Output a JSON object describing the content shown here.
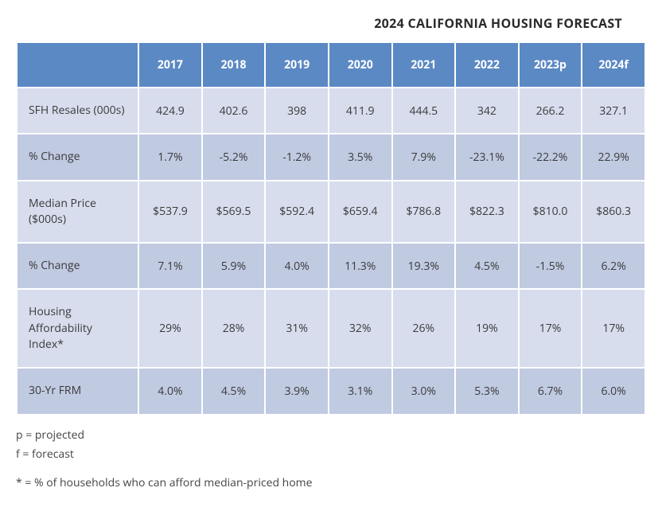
{
  "title": "2024 CALIFORNIA HOUSING FORECAST",
  "table": {
    "type": "table",
    "header_bg": "#5b89c4",
    "header_color": "#ffffff",
    "row_bg_odd": "#d7dded",
    "row_bg_even": "#c0cae1",
    "text_color": "#3a3a3a",
    "font_size": 14,
    "columns": [
      "",
      "2017",
      "2018",
      "2019",
      "2020",
      "2021",
      "2022",
      "2023p",
      "2024f"
    ],
    "rows": [
      {
        "label": "SFH Resales (000s)",
        "cells": [
          "424.9",
          "402.6",
          "398",
          "411.9",
          "444.5",
          "342",
          "266.2",
          "327.1"
        ]
      },
      {
        "label": "% Change",
        "cells": [
          "1.7%",
          "-5.2%",
          "-1.2%",
          "3.5%",
          "7.9%",
          "-23.1%",
          "-22.2%",
          "22.9%"
        ]
      },
      {
        "label": "Median Price ($000s)",
        "cells": [
          "$537.9",
          "$569.5",
          "$592.4",
          "$659.4",
          "$786.8",
          "$822.3",
          "$810.0",
          "$860.3"
        ]
      },
      {
        "label": "% Change",
        "cells": [
          "7.1%",
          "5.9%",
          "4.0%",
          "11.3%",
          "19.3%",
          "4.5%",
          "-1.5%",
          "6.2%"
        ]
      },
      {
        "label": "Housing Affordability Index*",
        "cells": [
          "29%",
          "28%",
          "31%",
          "32%",
          "26%",
          "19%",
          "17%",
          "17%"
        ]
      },
      {
        "label": "30-Yr FRM",
        "cells": [
          "4.0%",
          "4.5%",
          "3.9%",
          "3.1%",
          "3.0%",
          "5.3%",
          "6.7%",
          "6.0%"
        ]
      }
    ]
  },
  "footnotes": {
    "line1": "p = projected",
    "line2": "f = forecast",
    "line3": "* = % of households who can afford median-priced home"
  }
}
